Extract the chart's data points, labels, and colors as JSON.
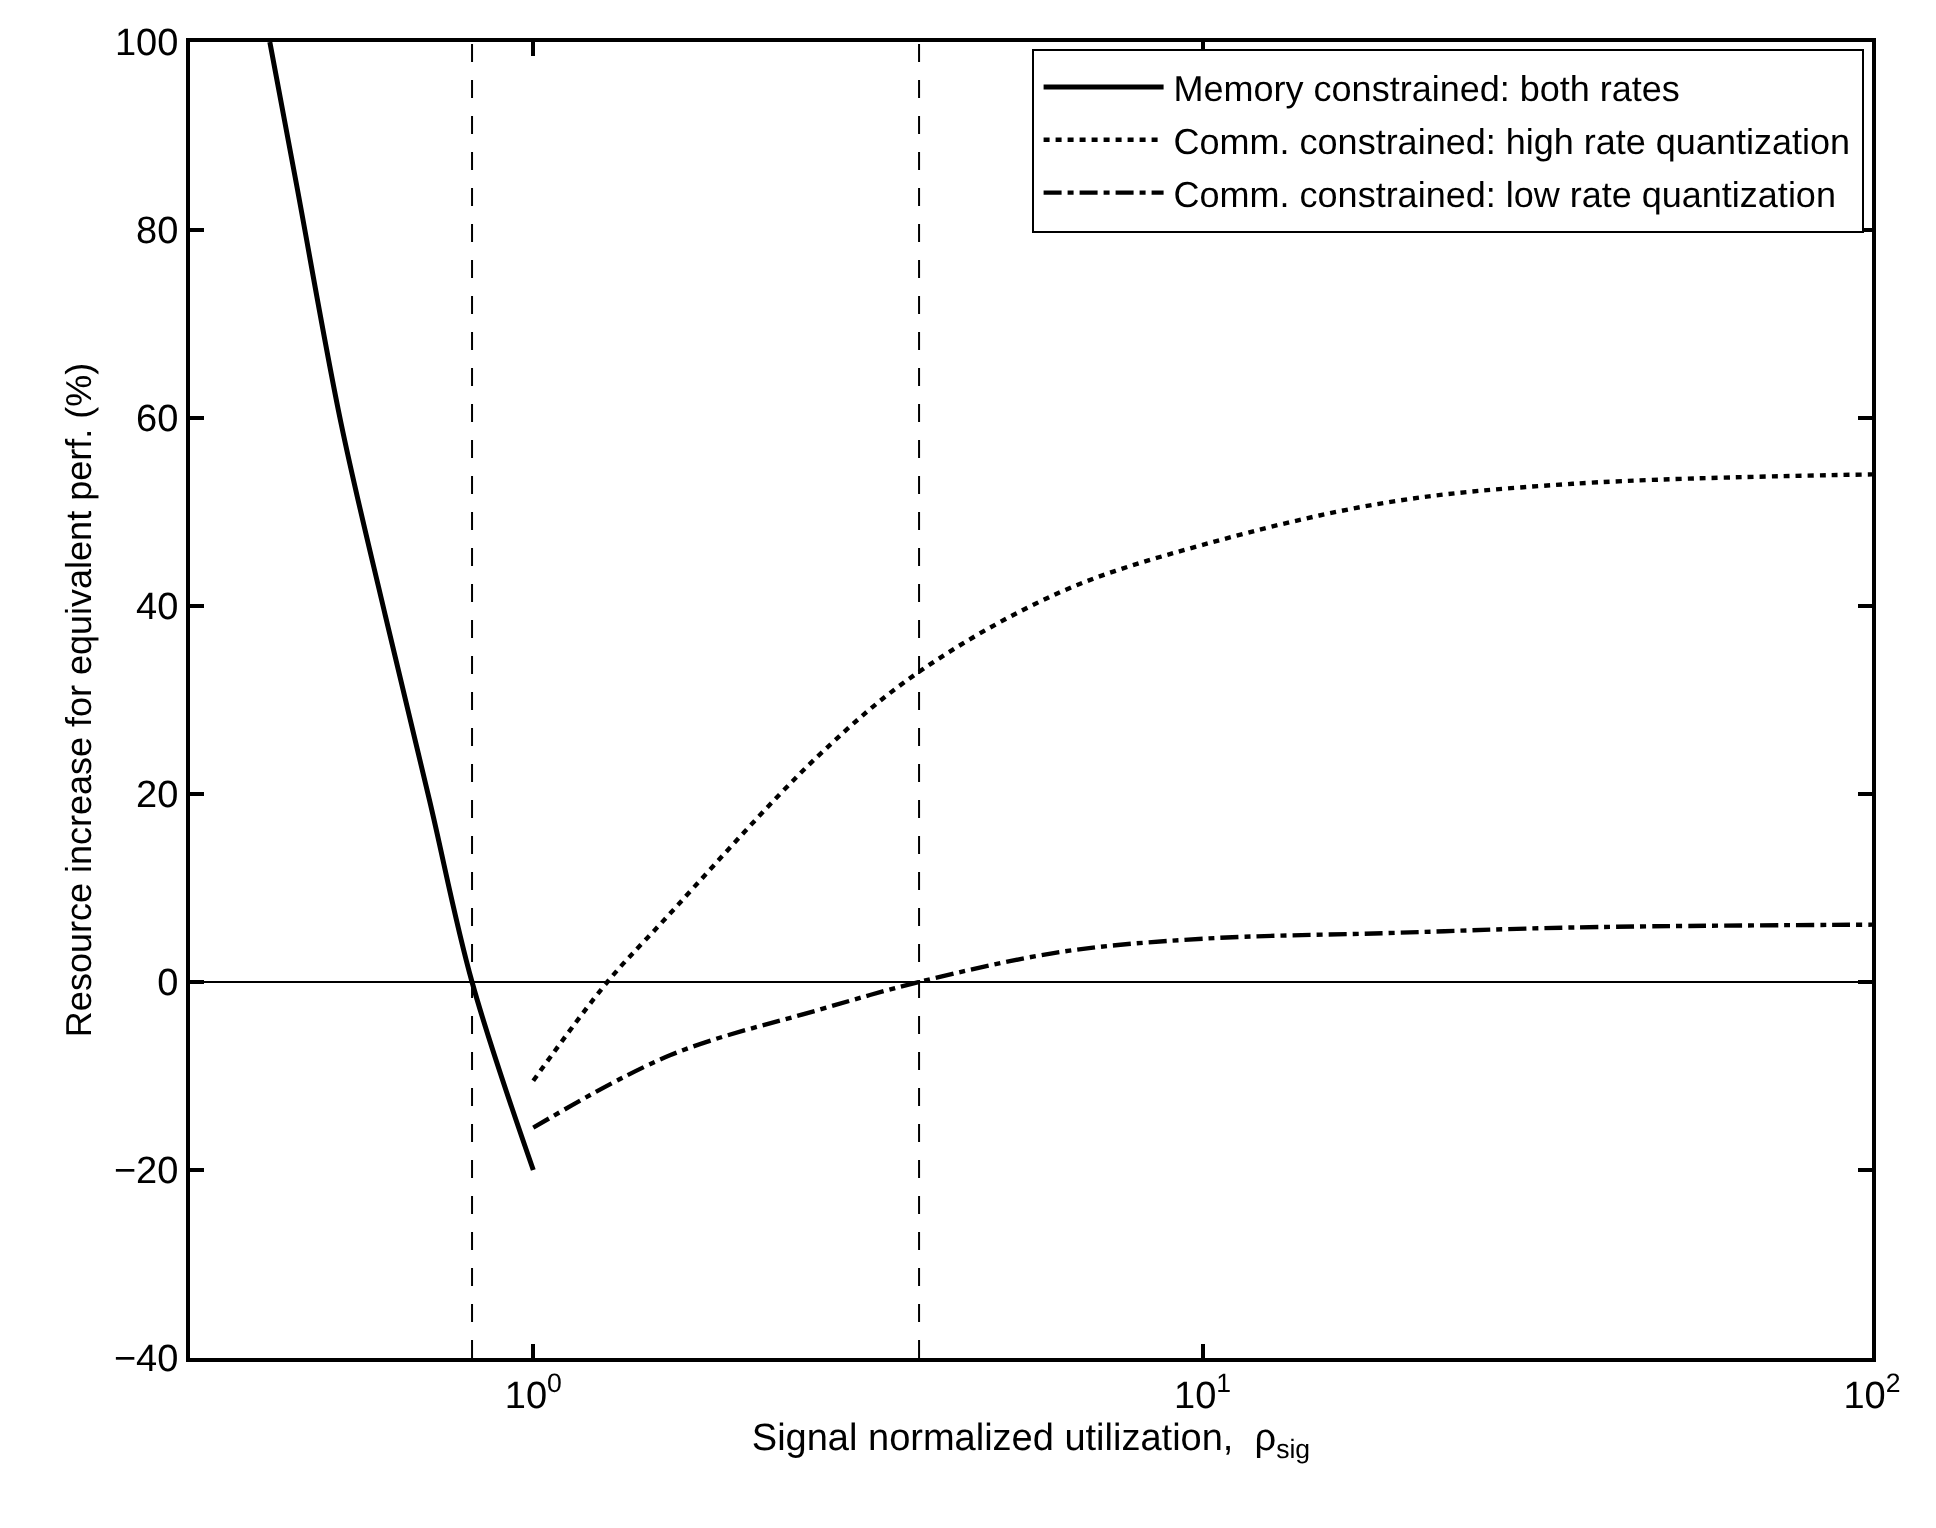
{
  "chart_data": {
    "type": "line",
    "xlabel": "Signal normalized utilization,  ρ$_{sig}$",
    "ylabel": "Resource increase for equivalent perf. (%)",
    "log": "x",
    "grid": false,
    "legend": "top right",
    "xlim": [
      0.307,
      100
    ],
    "ylim": [
      -40,
      100
    ],
    "xticks": [
      {
        "value": 1,
        "label": "10$^{0}$"
      },
      {
        "value": 10,
        "label": "10$^{1}$"
      },
      {
        "value": 100,
        "label": "10$^{2}$"
      }
    ],
    "yticks": [
      -40,
      -20,
      0,
      20,
      40,
      60,
      80,
      100
    ],
    "series": [
      {
        "name": "Memory constrained: both rates",
        "color": "#000000",
        "line_style": "solid",
        "x": [
          0.404,
          0.443,
          0.516,
          0.601,
          0.7,
          0.81,
          1.0
        ],
        "values": [
          100,
          84.8,
          59.5,
          39,
          19.3,
          0,
          -20
        ]
      },
      {
        "name": "Comm. constrained: high rate quantization",
        "color": "#000000",
        "line_style": "dotted",
        "x": [
          1.0,
          1.29,
          1.55,
          2.66,
          3.77,
          6.14,
          10,
          18.8,
          35.7,
          100
        ],
        "values": [
          -10.5,
          0,
          6.2,
          24,
          33,
          41.5,
          46.5,
          51,
          53,
          54
        ]
      },
      {
        "name": "Comm. constrained: low rate quantization",
        "color": "#000000",
        "line_style": "dashdot",
        "x": [
          1.0,
          1.6,
          2.66,
          3.77,
          6.14,
          10,
          18.8,
          35.7,
          100
        ],
        "values": [
          -15.5,
          -7.8,
          -3,
          0,
          3.2,
          4.6,
          5.2,
          5.8,
          6.1
        ]
      }
    ],
    "ref_lines": [
      {
        "axis": "y",
        "value": 0,
        "color": "#000000",
        "line_style": "solid"
      },
      {
        "axis": "x",
        "value": 0.81,
        "color": "#000000",
        "line_style": "dashed"
      },
      {
        "axis": "x",
        "value": 3.77,
        "color": "#000000",
        "line_style": "dashed"
      }
    ]
  }
}
